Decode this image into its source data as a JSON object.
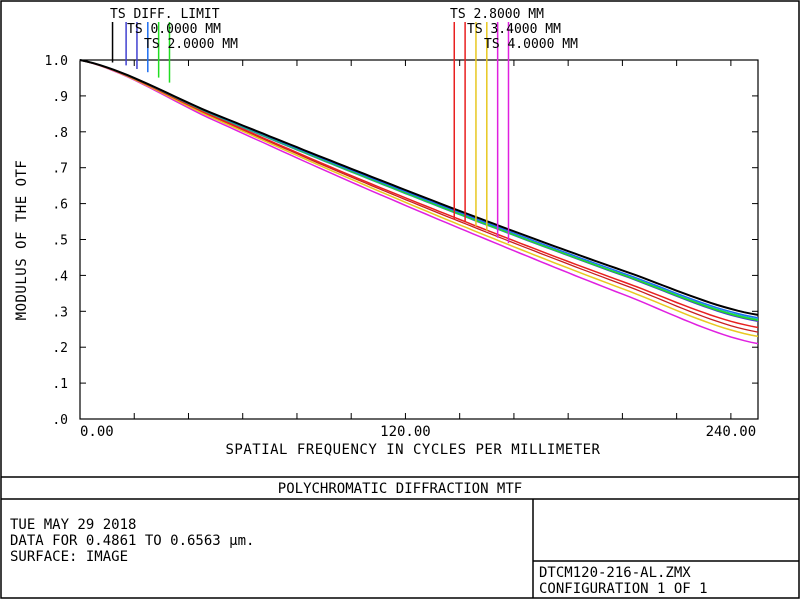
{
  "chart_data": {
    "type": "line",
    "title": "POLYCHROMATIC DIFFRACTION MTF",
    "xlabel": "SPATIAL FREQUENCY IN CYCLES PER MILLIMETER",
    "ylabel": "MODULUS OF THE OTF",
    "xlim": [
      0,
      250
    ],
    "ylim": [
      0,
      1
    ],
    "x_ticks": [
      "0.00",
      "120.00",
      "240.00"
    ],
    "x_tick_values": [
      0,
      120,
      240
    ],
    "y_ticks": [
      "0",
      ".1",
      ".2",
      ".3",
      ".4",
      ".5",
      ".6",
      ".7",
      ".8",
      ".9",
      "1.0"
    ],
    "y_tick_labels": [
      ".0",
      ".1",
      ".2",
      ".3",
      ".4",
      ".5",
      ".6",
      ".7",
      ".8",
      ".9",
      "1.0"
    ],
    "grid": false,
    "legend_left": [
      "TS DIFF. LIMIT",
      "TS 0.0000 MM",
      "TS 2.0000 MM"
    ],
    "legend_right": [
      "TS 2.8000 MM",
      "TS 3.4000 MM",
      "TS 4.0000 MM"
    ],
    "x": [
      0,
      50,
      100,
      150,
      200,
      250
    ],
    "series": [
      {
        "name": "TS DIFF. LIMIT",
        "color": "#000000",
        "values": [
          1.0,
          0.848,
          0.697,
          0.551,
          0.414,
          0.29
        ]
      },
      {
        "name": "TS 0.0000 MM",
        "color": "#1e6ef0",
        "values": [
          1.0,
          0.846,
          0.693,
          0.546,
          0.407,
          0.282
        ]
      },
      {
        "name": "TS 2.0000 MM",
        "color": "#22dd22",
        "values": [
          1.0,
          0.845,
          0.69,
          0.542,
          0.402,
          0.275
        ]
      },
      {
        "name": "TS 2.8000 MM",
        "color": "#e82020",
        "values": [
          1.0,
          0.84,
          0.678,
          0.526,
          0.383,
          0.255
        ]
      },
      {
        "name": "TS 3.4000 MM",
        "color": "#e8c820",
        "values": [
          1.0,
          0.835,
          0.668,
          0.51,
          0.363,
          0.23
        ]
      },
      {
        "name": "TS 4.0000 MM",
        "color": "#e020e0",
        "values": [
          1.0,
          0.83,
          0.66,
          0.5,
          0.348,
          0.21
        ]
      }
    ],
    "extra_lines": [
      {
        "color": "#4040d0",
        "values": [
          1.0,
          0.843,
          0.688,
          0.54,
          0.4,
          0.272
        ]
      },
      {
        "color": "#c82020",
        "values": [
          1.0,
          0.838,
          0.674,
          0.52,
          0.375,
          0.242
        ]
      },
      {
        "color": "#20c0a0",
        "values": [
          1.0,
          0.844,
          0.689,
          0.541,
          0.403,
          0.278
        ]
      }
    ],
    "legend_markers": [
      {
        "x": 12,
        "y": 0.993,
        "color": "#000000"
      },
      {
        "x": 17,
        "y": 0.985,
        "color": "#4040d0"
      },
      {
        "x": 21,
        "y": 0.975,
        "color": "#4040d0"
      },
      {
        "x": 25,
        "y": 0.966,
        "color": "#1e6ef0"
      },
      {
        "x": 29,
        "y": 0.951,
        "color": "#22dd22"
      },
      {
        "x": 33,
        "y": 0.937,
        "color": "#22dd22"
      },
      {
        "x": 138,
        "y": 0.556,
        "color": "#e82020"
      },
      {
        "x": 142,
        "y": 0.548,
        "color": "#e82020"
      },
      {
        "x": 146,
        "y": 0.537,
        "color": "#e8c820"
      },
      {
        "x": 150,
        "y": 0.524,
        "color": "#e8c820"
      },
      {
        "x": 154,
        "y": 0.505,
        "color": "#e020e0"
      },
      {
        "x": 158,
        "y": 0.49,
        "color": "#e020e0"
      }
    ]
  },
  "footer": {
    "title": "POLYCHROMATIC DIFFRACTION MTF",
    "date": "TUE MAY 29 2018",
    "data_range": "DATA FOR 0.4861 TO 0.6563 μm.",
    "surface": "SURFACE: IMAGE",
    "filename": "DTCM120-216-AL.ZMX",
    "configuration": "CONFIGURATION 1 OF 1"
  }
}
